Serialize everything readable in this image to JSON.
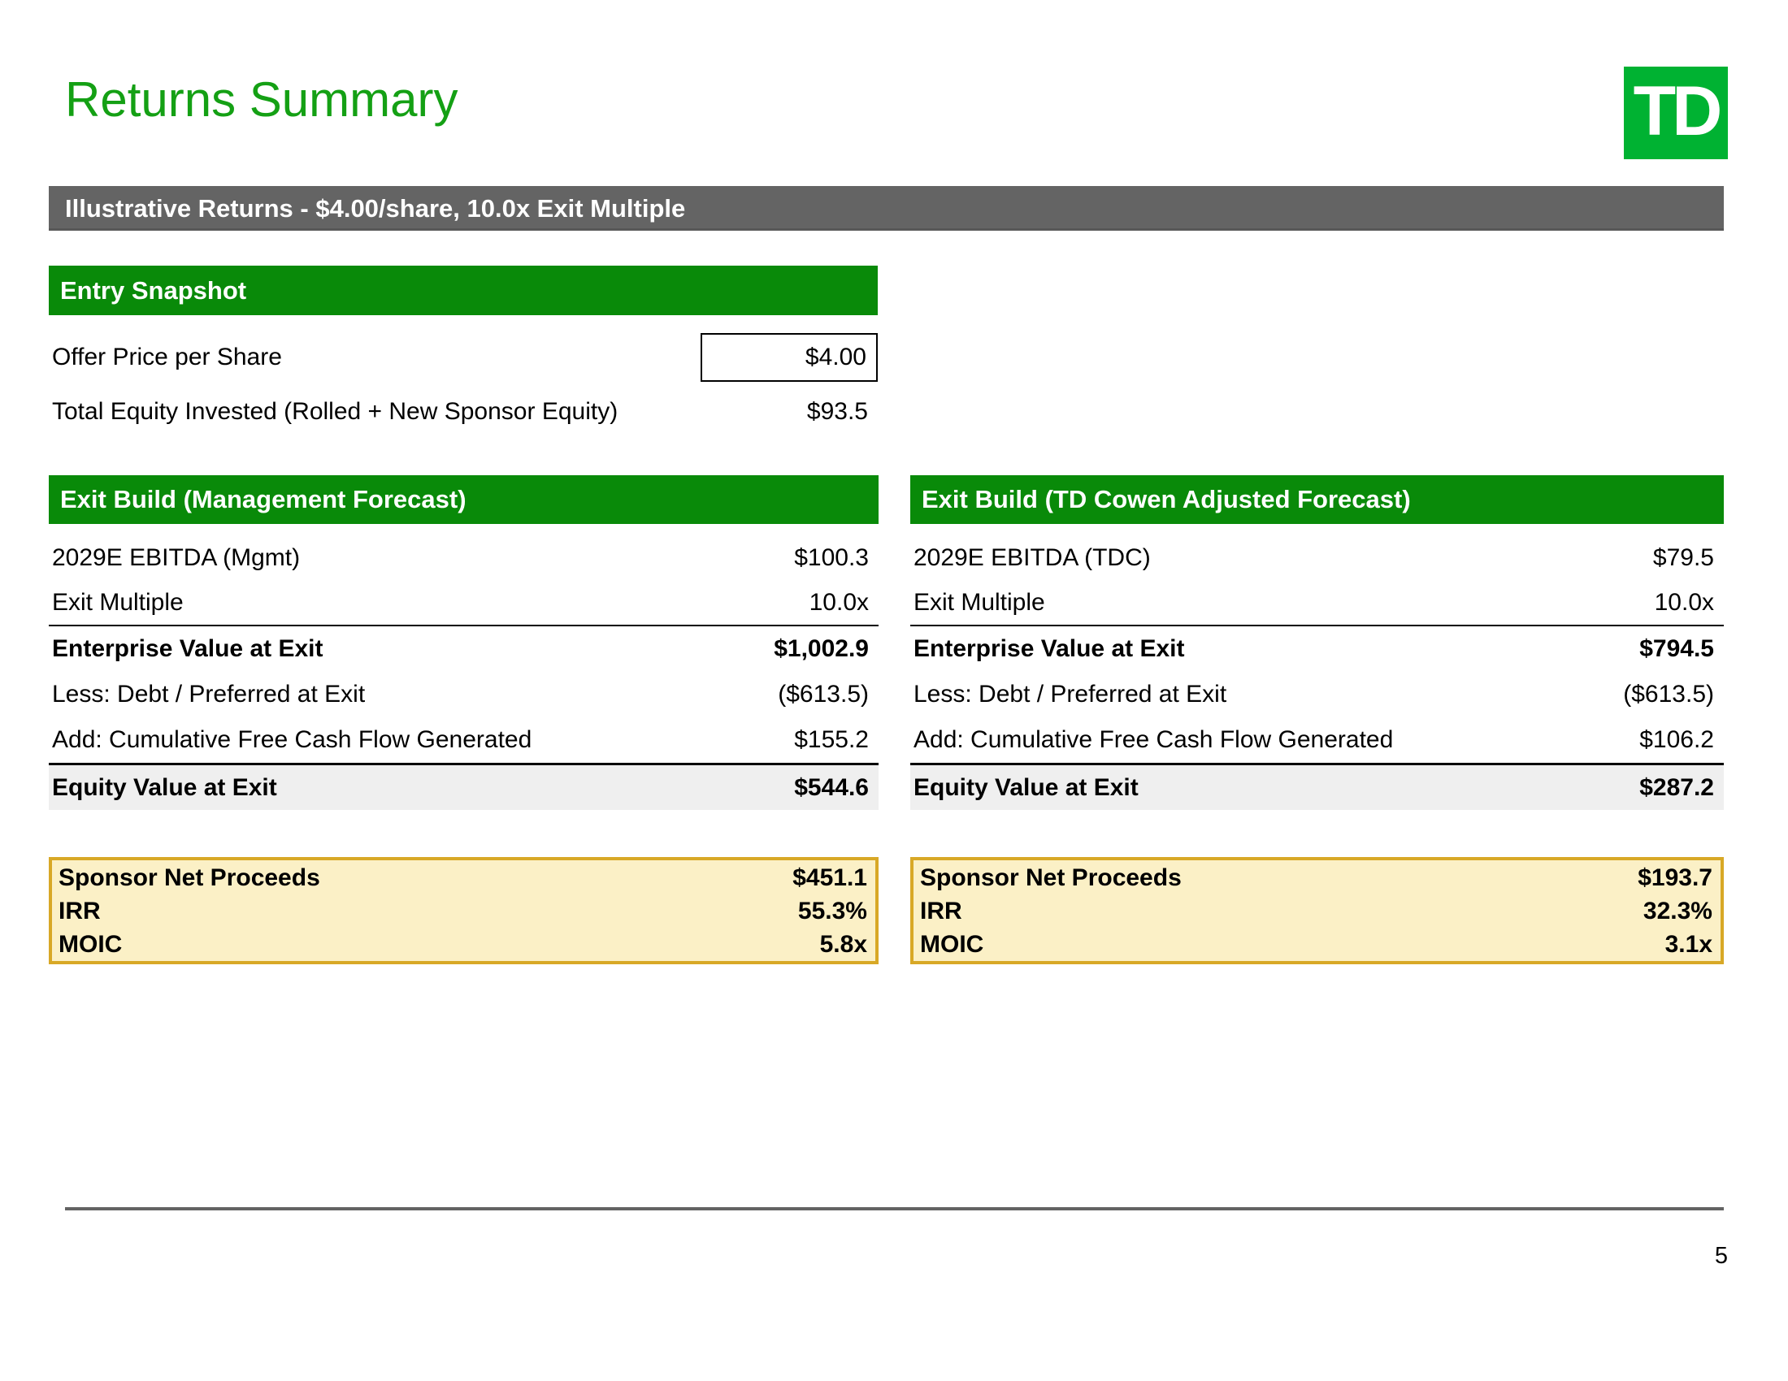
{
  "page": {
    "title": "Returns Summary",
    "page_number": "5"
  },
  "logo": {
    "text": "TD"
  },
  "banner": {
    "label": "Illustrative Returns - $4.00/share, 10.0x Exit Multiple"
  },
  "entry_snapshot": {
    "header": "Entry Snapshot",
    "rows": [
      {
        "label": "Offer Price per Share",
        "value": "$4.00"
      },
      {
        "label": "Total Equity Invested (Rolled + New Sponsor Equity)",
        "value": "$93.5"
      }
    ]
  },
  "exit_build_left": {
    "header": "Exit Build (Management Forecast)",
    "rows": [
      {
        "label": "2029E EBITDA (Mgmt)",
        "value": "$100.3"
      },
      {
        "label": "Exit Multiple",
        "value": "10.0x"
      },
      {
        "label": "Enterprise Value at Exit",
        "value": "$1,002.9"
      },
      {
        "label": "Less: Debt / Preferred at Exit",
        "value": "($613.5)"
      },
      {
        "label": "Add: Cumulative Free Cash Flow Generated",
        "value": "$155.2"
      },
      {
        "label": "Equity Value at Exit",
        "value": "$544.6"
      }
    ],
    "summary": [
      {
        "label": "Sponsor Net Proceeds",
        "value": "$451.1"
      },
      {
        "label": "IRR",
        "value": "55.3%"
      },
      {
        "label": "MOIC",
        "value": "5.8x"
      }
    ]
  },
  "exit_build_right": {
    "header": "Exit Build (TD Cowen Adjusted Forecast)",
    "rows": [
      {
        "label": "2029E EBITDA (TDC)",
        "value": "$79.5"
      },
      {
        "label": "Exit Multiple",
        "value": "10.0x"
      },
      {
        "label": "Enterprise Value at Exit",
        "value": "$794.5"
      },
      {
        "label": "Less: Debt / Preferred at Exit",
        "value": "($613.5)"
      },
      {
        "label": "Add: Cumulative Free Cash Flow Generated",
        "value": "$106.2"
      },
      {
        "label": "Equity Value at Exit",
        "value": "$287.2"
      }
    ],
    "summary": [
      {
        "label": "Sponsor Net Proceeds",
        "value": "$193.7"
      },
      {
        "label": "IRR",
        "value": "32.3%"
      },
      {
        "label": "MOIC",
        "value": "3.1x"
      }
    ]
  },
  "colors": {
    "title_green": "#14A014",
    "header_green": "#098A09",
    "logo_green": "#00B232",
    "banner_gray": "#646464",
    "shaded_row": "#EFEFEF",
    "highlight_bg": "#FBF0C6",
    "highlight_border": "#D8A826",
    "footer_gray": "#636363"
  }
}
